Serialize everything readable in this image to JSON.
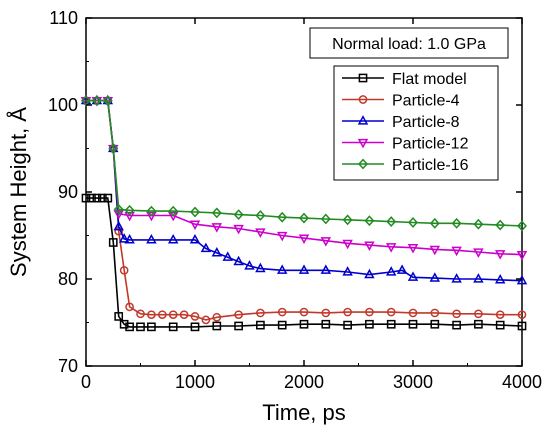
{
  "chart_data": {
    "type": "line",
    "title": "",
    "xlabel": "Time, ps",
    "ylabel": "System Height, Å",
    "xlim": [
      0,
      4000
    ],
    "ylim": [
      70,
      110
    ],
    "xticks": [
      0,
      1000,
      2000,
      3000,
      4000
    ],
    "yticks": [
      70,
      80,
      90,
      100,
      110
    ],
    "xtick_labels": [
      "0",
      "1000",
      "2000",
      "3000",
      "4000"
    ],
    "ytick_labels": [
      "70",
      "80",
      "90",
      "100",
      "110"
    ],
    "annotation": "Normal load: 1.0 GPa",
    "legend_position": "top-right",
    "grid": false,
    "series": [
      {
        "name": "Flat model",
        "color": "#000000",
        "marker": "square",
        "x": [
          0,
          50,
          100,
          150,
          200,
          250,
          300,
          350,
          400,
          500,
          600,
          800,
          1000,
          1200,
          1400,
          1600,
          1800,
          2000,
          2200,
          2400,
          2600,
          2800,
          3000,
          3200,
          3400,
          3600,
          3800,
          4000
        ],
        "y": [
          89.3,
          89.3,
          89.3,
          89.3,
          89.3,
          84.2,
          75.7,
          74.8,
          74.5,
          74.5,
          74.5,
          74.5,
          74.5,
          74.6,
          74.6,
          74.7,
          74.7,
          74.8,
          74.8,
          74.7,
          74.8,
          74.8,
          74.8,
          74.8,
          74.7,
          74.8,
          74.7,
          74.6
        ]
      },
      {
        "name": "Particle-4",
        "color": "#c0392b",
        "marker": "circle",
        "x": [
          0,
          100,
          200,
          250,
          300,
          350,
          400,
          500,
          600,
          700,
          800,
          900,
          1000,
          1100,
          1200,
          1400,
          1600,
          1800,
          2000,
          2200,
          2400,
          2600,
          2800,
          3000,
          3200,
          3400,
          3600,
          3800,
          4000
        ],
        "y": [
          100.5,
          100.5,
          100.5,
          95.0,
          85.5,
          81.0,
          76.8,
          76.0,
          75.9,
          75.9,
          75.9,
          75.9,
          75.7,
          75.3,
          75.6,
          75.9,
          76.1,
          76.2,
          76.2,
          76.1,
          76.2,
          76.2,
          76.2,
          76.1,
          76.1,
          76.0,
          76.0,
          75.9,
          75.9
        ]
      },
      {
        "name": "Particle-8",
        "color": "#0000cc",
        "marker": "triangle-up",
        "x": [
          0,
          100,
          200,
          250,
          300,
          350,
          400,
          600,
          800,
          1000,
          1100,
          1200,
          1300,
          1400,
          1500,
          1600,
          1800,
          2000,
          2200,
          2400,
          2600,
          2800,
          2900,
          3000,
          3200,
          3400,
          3600,
          3800,
          4000
        ],
        "y": [
          100.5,
          100.5,
          100.5,
          95.0,
          86.0,
          84.6,
          84.5,
          84.5,
          84.5,
          84.5,
          83.5,
          83.0,
          82.5,
          82.0,
          81.5,
          81.2,
          81.0,
          81.0,
          81.0,
          80.8,
          80.5,
          80.8,
          81.0,
          80.2,
          80.1,
          80.0,
          80.0,
          79.9,
          79.8
        ]
      },
      {
        "name": "Particle-12",
        "color": "#cc00cc",
        "marker": "triangle-down",
        "x": [
          0,
          100,
          200,
          250,
          300,
          400,
          600,
          800,
          1000,
          1200,
          1400,
          1600,
          1800,
          2000,
          2200,
          2400,
          2600,
          2800,
          3000,
          3200,
          3400,
          3600,
          3800,
          4000
        ],
        "y": [
          100.5,
          100.5,
          100.5,
          95.0,
          87.5,
          87.3,
          87.3,
          87.3,
          86.3,
          86.0,
          85.8,
          85.4,
          85.0,
          84.7,
          84.4,
          84.1,
          83.9,
          83.7,
          83.6,
          83.4,
          83.3,
          83.1,
          82.9,
          82.8
        ]
      },
      {
        "name": "Particle-16",
        "color": "#228b22",
        "marker": "diamond",
        "x": [
          0,
          100,
          200,
          250,
          300,
          400,
          600,
          800,
          1000,
          1200,
          1400,
          1600,
          1800,
          2000,
          2200,
          2400,
          2600,
          2800,
          3000,
          3200,
          3400,
          3600,
          3800,
          4000
        ],
        "y": [
          100.5,
          100.5,
          100.5,
          95.0,
          88.0,
          87.9,
          87.8,
          87.8,
          87.7,
          87.6,
          87.4,
          87.3,
          87.1,
          87.0,
          86.9,
          86.8,
          86.7,
          86.6,
          86.5,
          86.4,
          86.4,
          86.3,
          86.2,
          86.1
        ]
      }
    ]
  }
}
